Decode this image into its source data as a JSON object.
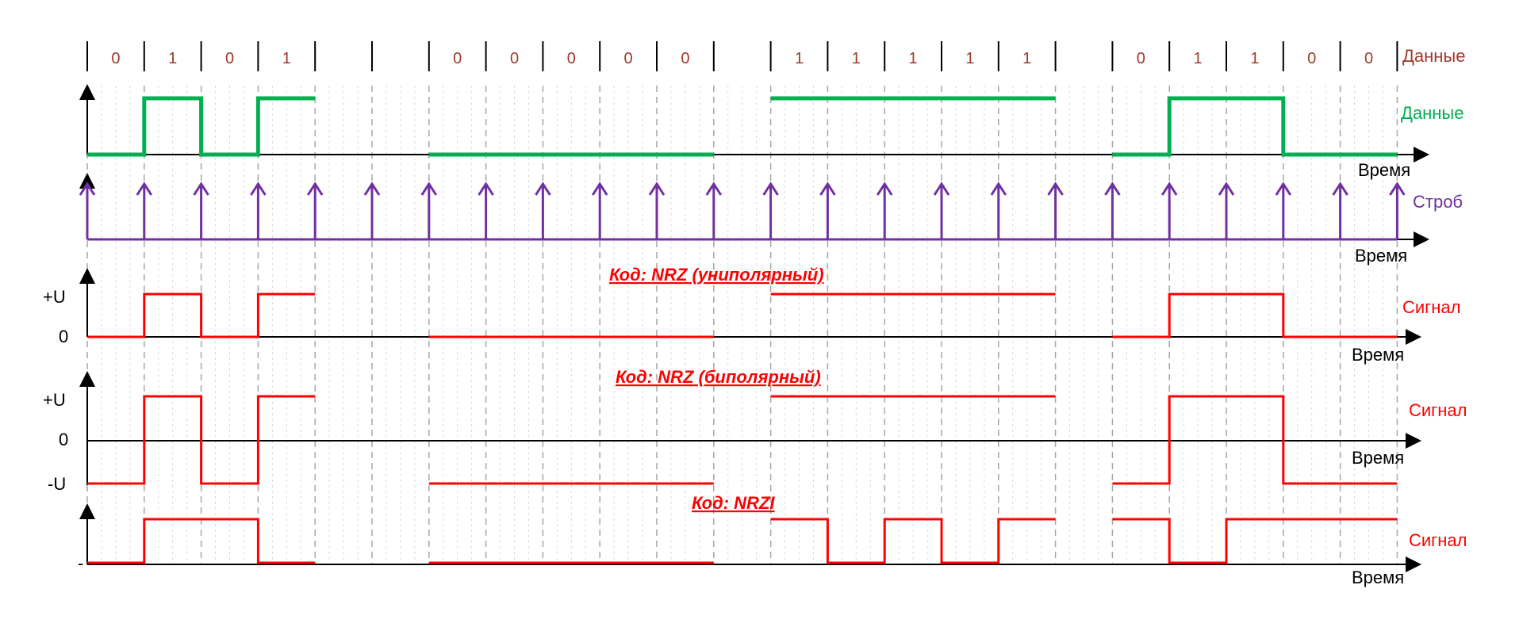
{
  "top_label": "Данные",
  "bits": [
    "0",
    "1",
    "0",
    "1",
    "",
    "",
    "0",
    "0",
    "0",
    "0",
    "0",
    "",
    "1",
    "1",
    "1",
    "1",
    "1",
    "",
    "0",
    "1",
    "1",
    "0",
    "0"
  ],
  "data_label": "Данные",
  "strobe_label": "Строб",
  "time_label": "Время",
  "signal_label": "Сигнал",
  "tick_plus": "+U",
  "tick_zero": "0",
  "tick_minus": "-U",
  "tick_dash": "-",
  "title_nrz_uni": "Код: NRZ (униполярный)",
  "title_nrz_bi": "Код: NRZ (биполярный)",
  "title_nrzi": "Код: NRZI",
  "colors": {
    "data": "#00b050",
    "strobe": "#7030a0",
    "signal": "#ff0000",
    "bits": "#a0392c"
  }
}
